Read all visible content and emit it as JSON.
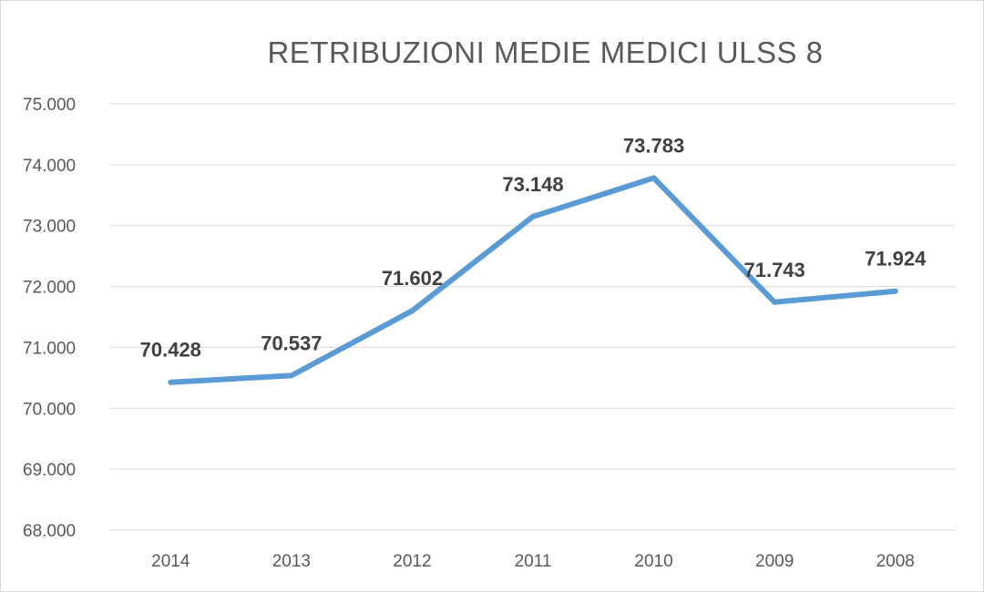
{
  "chart_data": {
    "type": "line",
    "title": "RETRIBUZIONI MEDIE MEDICI ULSS 8",
    "xlabel": "",
    "ylabel": "",
    "categories": [
      "2014",
      "2013",
      "2012",
      "2011",
      "2010",
      "2009",
      "2008"
    ],
    "series": [
      {
        "values": [
          70428,
          70537,
          71602,
          73148,
          73783,
          71743,
          71924
        ],
        "value_labels": [
          "70.428",
          "70.537",
          "71.602",
          "73.148",
          "73.783",
          "71.743",
          "71.924"
        ]
      }
    ],
    "ylim": [
      68000,
      75000
    ],
    "yticks": [
      68000,
      69000,
      70000,
      71000,
      72000,
      73000,
      74000,
      75000
    ],
    "ytick_labels": [
      "68.000",
      "69.000",
      "70.000",
      "71.000",
      "72.000",
      "73.000",
      "74.000",
      "75.000"
    ],
    "grid": true,
    "legend": "none",
    "line_color": "#5b9bd5"
  }
}
